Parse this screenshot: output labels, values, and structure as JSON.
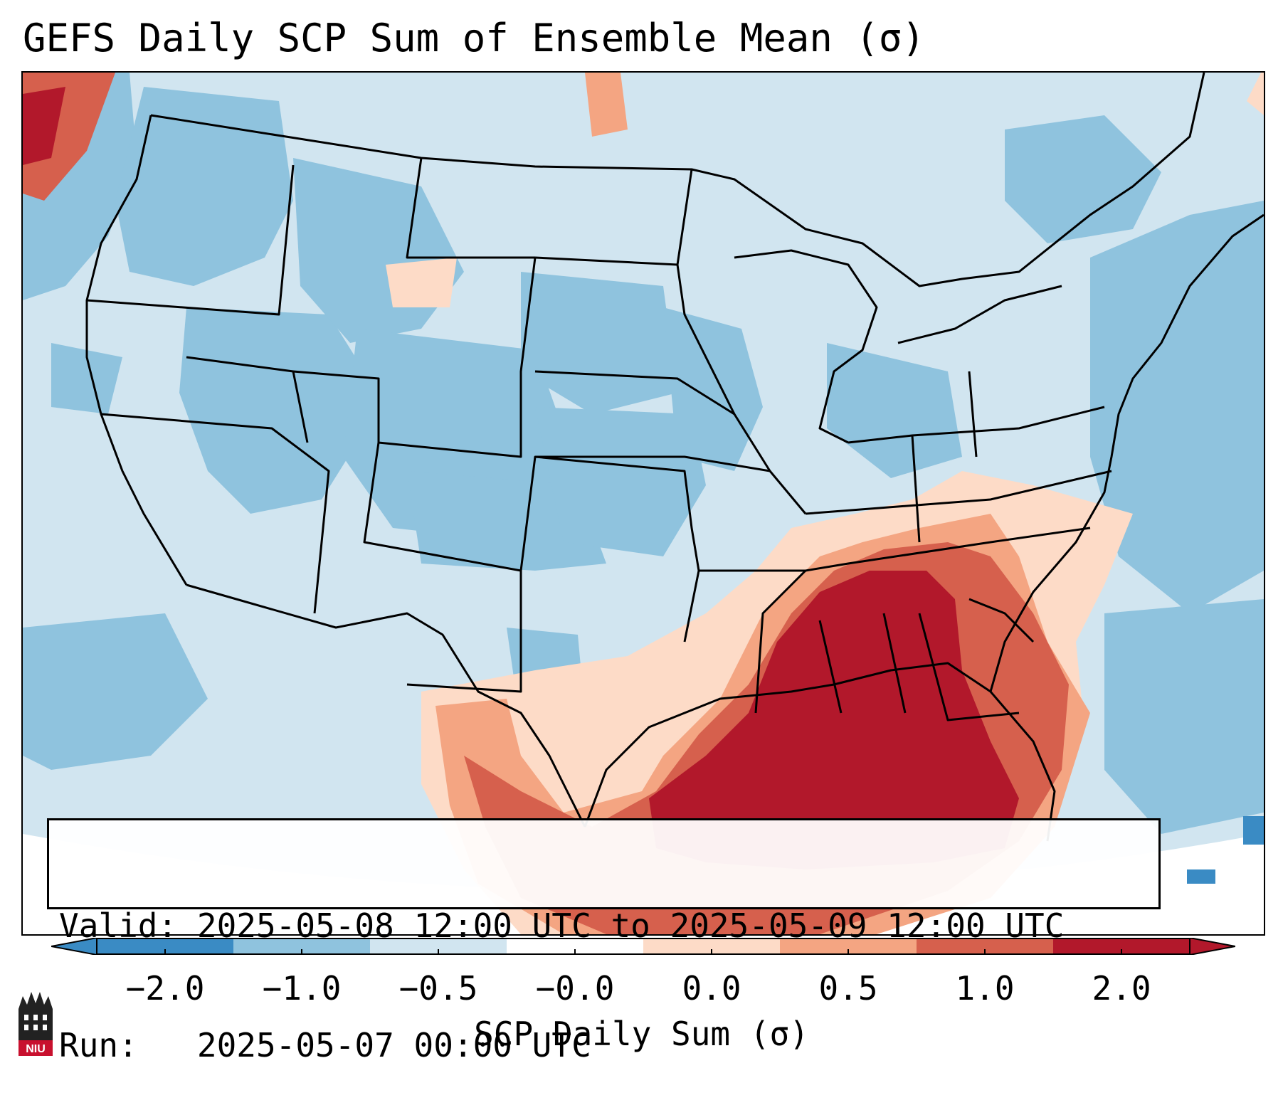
{
  "title": "GEFS Daily SCP Sum of Ensemble Mean (σ)",
  "info": {
    "valid_label": "Valid:",
    "valid_value": "2025-05-08 12:00 UTC to 2025-05-09 12:00 UTC",
    "run_label": "Run:",
    "run_value": "2025-05-07 00:00 UTC"
  },
  "colorbar": {
    "label": "SCP Daily Sum (σ)",
    "ticks": [
      "−2.0",
      "−1.0",
      "−0.5",
      "−0.0",
      "0.0",
      "0.5",
      "1.0",
      "2.0"
    ],
    "colors": [
      "#3a8bc4",
      "#8fc3de",
      "#d1e5f0",
      "#ffffff",
      "#fddbc7",
      "#f4a582",
      "#d6604d",
      "#b2182b"
    ],
    "extend": "both"
  },
  "logo": {
    "text": "NIU"
  },
  "palette": {
    "ocean": "#d1e5f0",
    "neg_medium": "#8fc3de",
    "neg_strong": "#3a8bc4",
    "pos_light": "#fddbc7",
    "pos_medium": "#f4a582",
    "pos_strong": "#d6604d",
    "pos_max": "#b2182b"
  }
}
